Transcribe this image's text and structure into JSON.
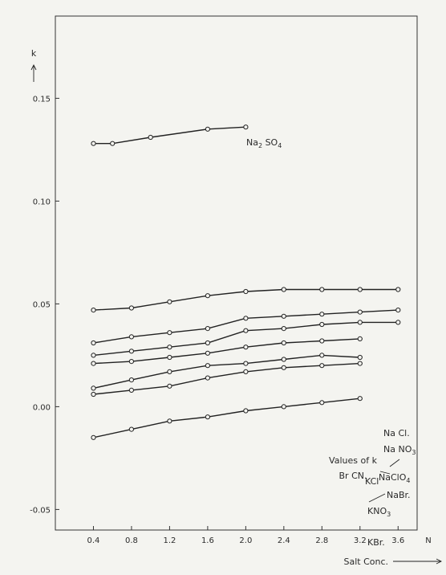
{
  "chart_data": {
    "type": "line",
    "ylabel": "k",
    "xlabel": "Salt Conc.",
    "x_unit": "N",
    "xlim": [
      0,
      3.8
    ],
    "ylim": [
      -0.06,
      0.19
    ],
    "xticks": [
      0.4,
      0.8,
      1.2,
      1.6,
      2.0,
      2.4,
      2.8,
      3.2,
      3.6
    ],
    "xtick_labels": [
      "0.4",
      "0.8",
      "1.2",
      "1.6",
      "2.0",
      "2.4",
      "2.8",
      "3.2",
      "3.6"
    ],
    "yticks": [
      -0.05,
      0.0,
      0.05,
      0.1,
      0.15
    ],
    "ytick_labels": [
      "-0.05",
      "0.00",
      "0.05",
      "0.10",
      "0.15"
    ],
    "grid": false,
    "annotation": [
      "Values of k",
      "Br CN."
    ],
    "series": [
      {
        "name": "Na2SO4",
        "label_main": "Na",
        "label_parts": [
          {
            "t": "Na"
          },
          {
            "t": "2",
            "sub": true
          },
          {
            "t": " SO"
          },
          {
            "t": "4",
            "sub": true
          }
        ],
        "x": [
          0.4,
          0.6,
          1.0,
          1.6,
          2.0
        ],
        "y": [
          0.128,
          0.128,
          0.131,
          0.135,
          0.136
        ]
      },
      {
        "name": "NaCl.",
        "label_parts": [
          {
            "t": "Na Cl."
          }
        ],
        "x": [
          0.4,
          0.8,
          1.2,
          1.6,
          2.0,
          2.4,
          2.8,
          3.2,
          3.6
        ],
        "y": [
          0.047,
          0.048,
          0.051,
          0.054,
          0.056,
          0.057,
          0.057,
          0.057,
          0.057
        ]
      },
      {
        "name": "NaNO3",
        "label_parts": [
          {
            "t": "Na NO"
          },
          {
            "t": "3",
            "sub": true
          }
        ],
        "x": [
          0.4,
          0.8,
          1.2,
          1.6,
          2.0,
          2.4,
          2.8,
          3.2,
          3.6
        ],
        "y": [
          0.031,
          0.034,
          0.036,
          0.038,
          0.043,
          0.044,
          0.045,
          0.046,
          0.047
        ]
      },
      {
        "name": "NaClO4",
        "label_parts": [
          {
            "t": "NaClO"
          },
          {
            "t": "4",
            "sub": true
          }
        ],
        "x": [
          0.4,
          0.8,
          1.2,
          1.6,
          2.0,
          2.4,
          2.8,
          3.2,
          3.6
        ],
        "y": [
          0.025,
          0.027,
          0.029,
          0.031,
          0.037,
          0.038,
          0.04,
          0.041,
          0.041
        ]
      },
      {
        "name": "KCl",
        "label_parts": [
          {
            "t": "KCl"
          }
        ],
        "x": [
          0.4,
          0.8,
          1.2,
          1.6,
          2.0,
          2.4,
          2.8,
          3.2
        ],
        "y": [
          0.021,
          0.022,
          0.024,
          0.026,
          0.029,
          0.031,
          0.032,
          0.033
        ]
      },
      {
        "name": "NaBr.",
        "label_parts": [
          {
            "t": "NaBr."
          }
        ],
        "x": [
          0.4,
          0.8,
          1.2,
          1.6,
          2.0,
          2.4,
          2.8,
          3.2
        ],
        "y": [
          0.009,
          0.013,
          0.017,
          0.02,
          0.021,
          0.023,
          0.025,
          0.024
        ]
      },
      {
        "name": "KNO3",
        "label_parts": [
          {
            "t": "KNO"
          },
          {
            "t": "3",
            "sub": true
          }
        ],
        "x": [
          0.4,
          0.8,
          1.2,
          1.6,
          2.0,
          2.4,
          2.8,
          3.2
        ],
        "y": [
          0.006,
          0.008,
          0.01,
          0.014,
          0.017,
          0.019,
          0.02,
          0.021
        ]
      },
      {
        "name": "KBr.",
        "label_parts": [
          {
            "t": "KBr."
          }
        ],
        "x": [
          0.4,
          0.8,
          1.2,
          1.6,
          2.0,
          2.4,
          2.8,
          3.2
        ],
        "y": [
          -0.015,
          -0.011,
          -0.007,
          -0.005,
          -0.002,
          0.0,
          0.002,
          0.004
        ]
      }
    ]
  }
}
